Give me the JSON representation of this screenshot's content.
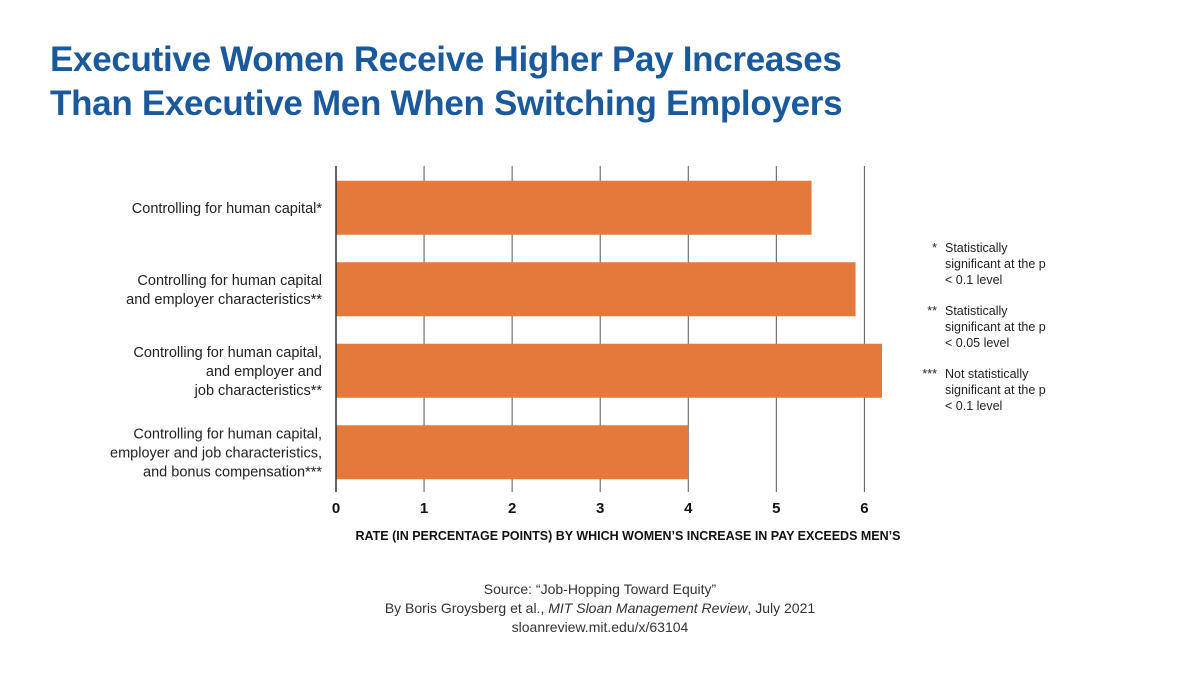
{
  "title": {
    "line1": "Executive Women Receive Higher Pay Increases",
    "line2": "Than Executive Men When Switching Employers"
  },
  "chart_data": {
    "type": "bar",
    "orientation": "horizontal",
    "categories": [
      [
        "Controlling for human capital*"
      ],
      [
        "Controlling for human capital",
        "and employer characteristics**"
      ],
      [
        "Controlling for human capital,",
        "and employer and",
        "job characteristics**"
      ],
      [
        "Controlling for human capital,",
        "employer and job characteristics,",
        "and bonus compensation***"
      ]
    ],
    "values": [
      5.4,
      5.9,
      6.2,
      4.0
    ],
    "xlabel": "RATE (IN PERCENTAGE POINTS) BY WHICH WOMEN’S INCREASE IN PAY EXCEEDS MEN’S",
    "ylabel": "",
    "xlim": [
      0,
      6.2
    ],
    "xticks": [
      0,
      1,
      2,
      3,
      4,
      5,
      6
    ],
    "grid": true,
    "bar_color": "#e4793b",
    "grid_color": "#555555"
  },
  "notes": [
    {
      "marker": "*",
      "text": "Statistically significant at the p < 0.1 level"
    },
    {
      "marker": "**",
      "text": "Statistically significant at the p < 0.05 level"
    },
    {
      "marker": "***",
      "text": "Not statistically significant at the p < 0.1 level"
    }
  ],
  "source": {
    "line1": "Source: “Job-Hopping Toward Equity”",
    "line2_prefix": "By Boris Groysberg et al., ",
    "line2_pub": "MIT Sloan Management Review",
    "line2_suffix": ", July 2021",
    "line3": "sloanreview.mit.edu/x/63104"
  }
}
